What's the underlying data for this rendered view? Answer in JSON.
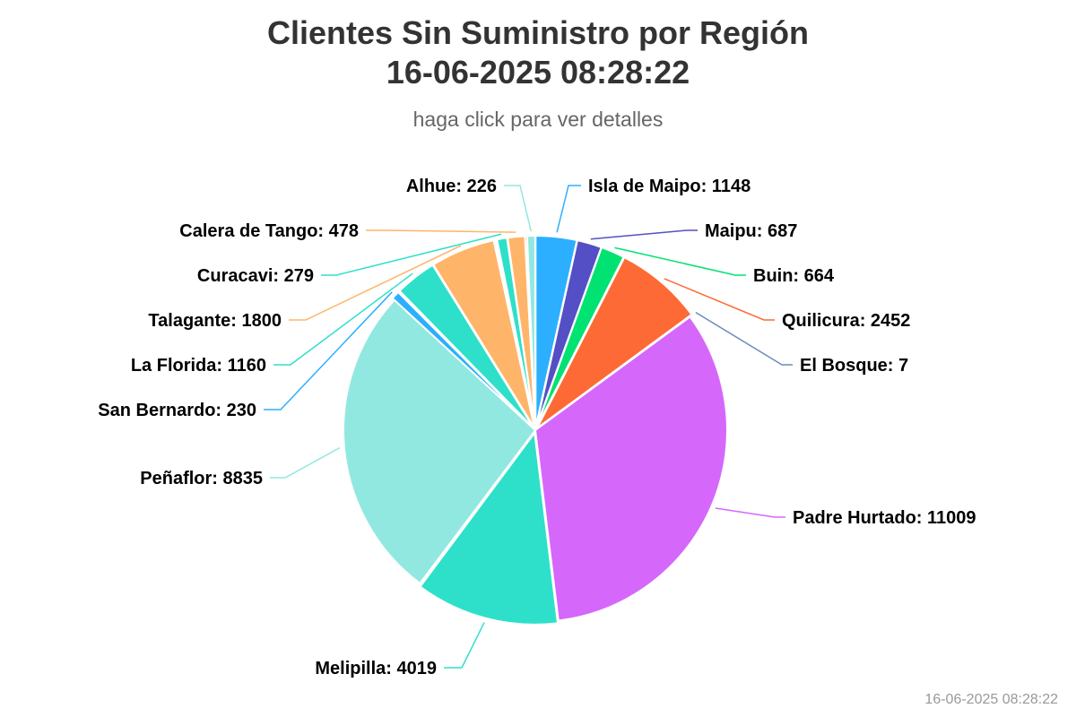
{
  "header": {
    "title_line_1": "Clientes Sin Suministro por Región",
    "title_line_2": "16-06-2025 08:28:22",
    "subtitle": "haga click para ver detalles"
  },
  "credit": "16-06-2025 08:28:22",
  "chart_data": {
    "type": "pie",
    "title": "Clientes Sin Suministro por Región 16-06-2025 08:28:22",
    "subtitle": "haga click para ver detalles",
    "data_label_format": "{name}: {value}",
    "slices": [
      {
        "name": "Isla de Maipo",
        "value": 1148,
        "color": "#2caffe"
      },
      {
        "name": "Maipu",
        "value": 687,
        "color": "#544fc5"
      },
      {
        "name": "Buin",
        "value": 664,
        "color": "#00e272"
      },
      {
        "name": "Quilicura",
        "value": 2452,
        "color": "#fe6a35"
      },
      {
        "name": "El Bosque",
        "value": 7,
        "color": "#6b8abc"
      },
      {
        "name": "Padre Hurtado",
        "value": 11009,
        "color": "#d568fb"
      },
      {
        "name": "Melipilla",
        "value": 4019,
        "color": "#2ee0ca"
      },
      {
        "name": "",
        "value": 30,
        "color": "#fa4b42"
      },
      {
        "name": "Peñaflor",
        "value": 8835,
        "color": "#91e8e1"
      },
      {
        "name": "San Bernardo",
        "value": 230,
        "color": "#2caffe"
      },
      {
        "name": "",
        "value": 40,
        "color": "#fe6a35"
      },
      {
        "name": "La Florida",
        "value": 1160,
        "color": "#2ee0ca"
      },
      {
        "name": "Talagante",
        "value": 1800,
        "color": "#feb56a"
      },
      {
        "name": "",
        "value": 40,
        "color": "#6b8abc"
      },
      {
        "name": "",
        "value": 40,
        "color": "#544fc5"
      },
      {
        "name": "Curacavi",
        "value": 279,
        "color": "#2ee0ca"
      },
      {
        "name": "",
        "value": 12,
        "color": "#91e8e1"
      },
      {
        "name": "Calera de Tango",
        "value": 478,
        "color": "#feb56a"
      },
      {
        "name": "",
        "value": 55,
        "color": "#fa4b42"
      },
      {
        "name": "Alhue",
        "value": 226,
        "color": "#91e8e1"
      }
    ]
  }
}
